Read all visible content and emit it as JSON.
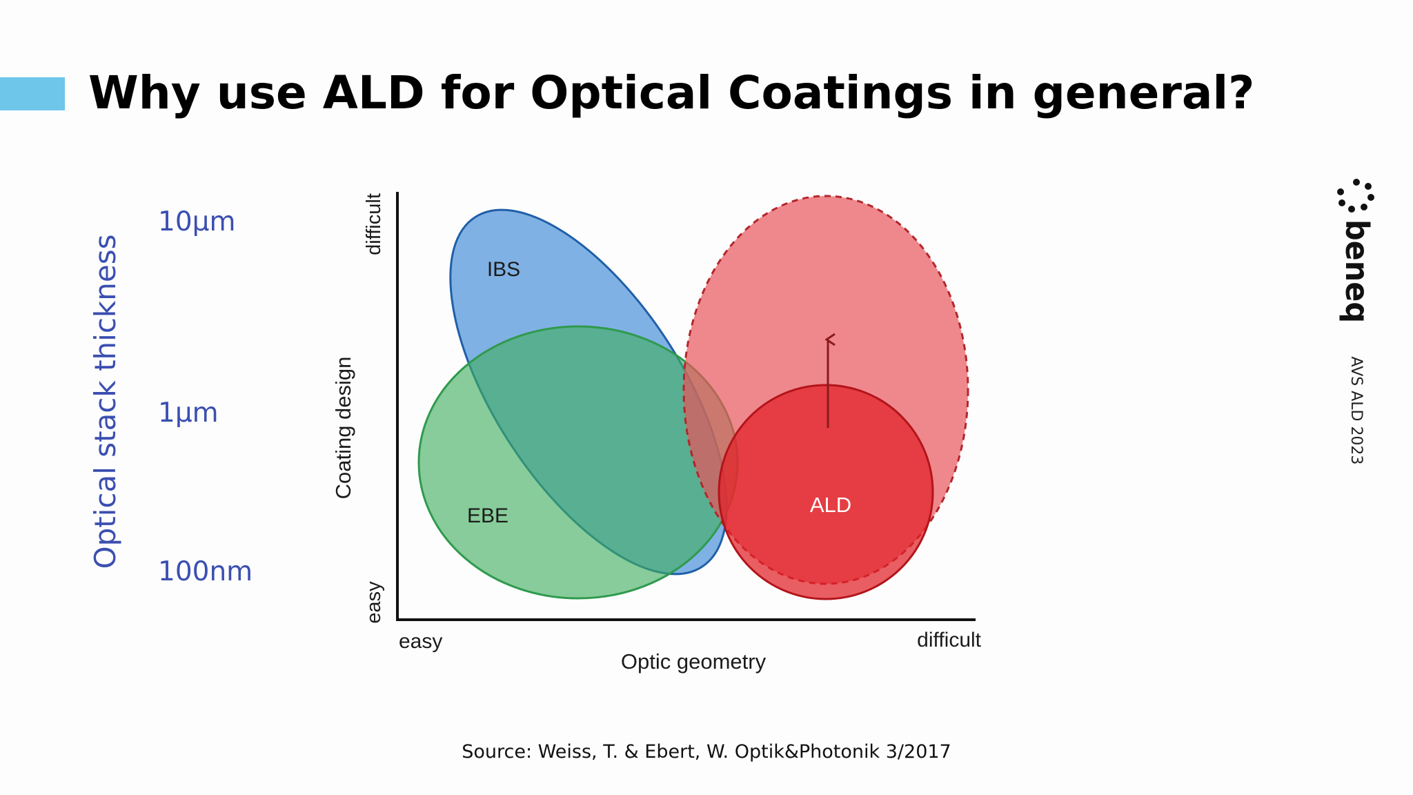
{
  "title": "Why use ALD for Optical Coatings in general?",
  "colors": {
    "accent_bar": "#6ec6ea",
    "thickness_text": "#3b4fb0",
    "ibs": "#4a90d9",
    "ebe": "#3fae5e",
    "ald": "#e02027",
    "ald_potential": "#e8555b"
  },
  "thickness_axis": {
    "label": "Optical stack thickness",
    "ticks": [
      "10µm",
      "1µm",
      "100nm"
    ]
  },
  "diagram": {
    "y_axis": {
      "label": "Coating design",
      "low": "easy",
      "high": "difficult"
    },
    "x_axis": {
      "label": "Optic geometry",
      "low": "easy",
      "high": "difficult"
    },
    "regions": [
      {
        "id": "ibs",
        "label": "IBS"
      },
      {
        "id": "ebe",
        "label": "EBE"
      },
      {
        "id": "ald",
        "label": "ALD"
      },
      {
        "id": "ald-potential",
        "label": "",
        "outline": "dashed"
      }
    ],
    "arrow": "upward-arrow"
  },
  "logo": {
    "text": "beneq",
    "icon": "beneq-dot-ring-icon"
  },
  "event": "AVS ALD 2023",
  "source": "Source: Weiss, T. & Ebert, W. Optik&Photonik 3/2017"
}
